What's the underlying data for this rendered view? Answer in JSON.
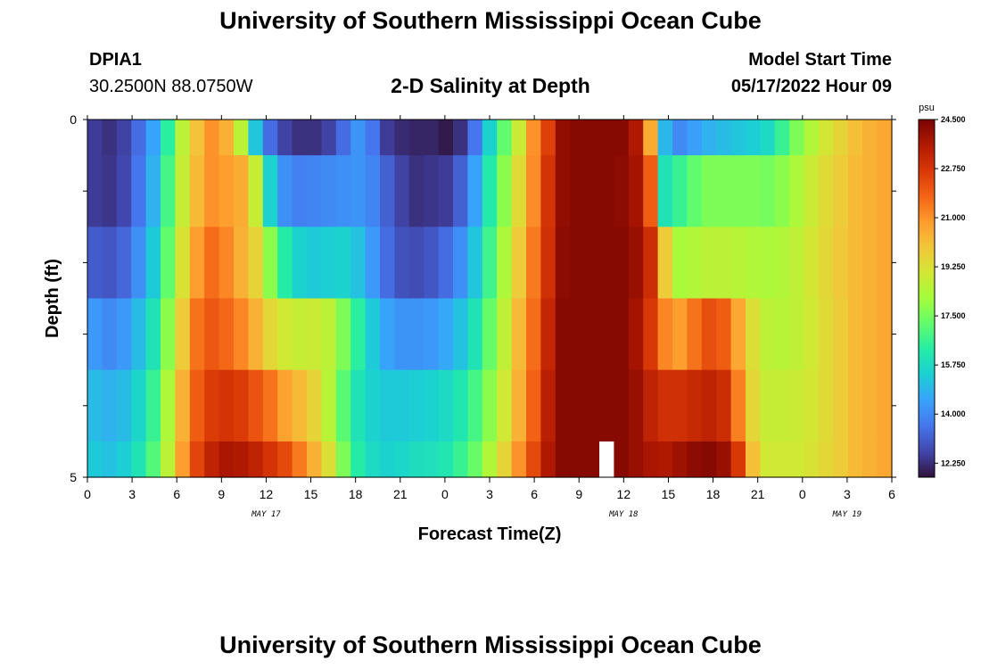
{
  "header": {
    "title": "University of Southern Mississippi Ocean Cube",
    "station_id": "DPIA1",
    "coords": "30.2500N  88.0750W",
    "subtitle": "2-D Salinity at Depth",
    "start_label": "Model Start Time",
    "start_value": "05/17/2022 Hour 09"
  },
  "footer": {
    "title": "University of Southern Mississippi Ocean Cube"
  },
  "colors": {
    "background": "#ffffff",
    "missing": "#ffffff",
    "text": "#000000"
  },
  "chart_data": {
    "type": "heatmap",
    "title": "2-D Salinity at Depth",
    "xlabel": "Forecast Time(Z)",
    "ylabel": "Depth (ft)",
    "x_start_hours": 0,
    "x_step_hours": 1,
    "x_end_hours": 54,
    "xtick_labels": [
      "0",
      "3",
      "6",
      "9",
      "12",
      "15",
      "18",
      "21",
      "0",
      "3",
      "6",
      "9",
      "12",
      "15",
      "18",
      "21",
      "0",
      "3",
      "6"
    ],
    "xtick_hours": [
      0,
      3,
      6,
      9,
      12,
      15,
      18,
      21,
      24,
      27,
      30,
      33,
      36,
      39,
      42,
      45,
      48,
      51,
      54
    ],
    "date_labels": [
      {
        "label": "MAY 17",
        "hour": 12
      },
      {
        "label": "MAY 18",
        "hour": 36
      },
      {
        "label": "MAY 19",
        "hour": 51
      }
    ],
    "ytick_labels": [
      {
        "label": "0",
        "depth": 0
      },
      {
        "label": "5",
        "depth": 5
      }
    ],
    "ylim": [
      0,
      5
    ],
    "depth_levels": [
      0.0,
      0.5,
      1.5,
      2.5,
      3.5,
      4.5
    ],
    "depth_bounds": [
      0,
      0.5,
      1.5,
      2.5,
      3.5,
      4.5,
      5
    ],
    "colorbar": {
      "unit": "psu",
      "min": 11.75,
      "max": 24.5,
      "tick_labels": [
        "24.500",
        "22.750",
        "21.000",
        "19.250",
        "17.500",
        "15.750",
        "14.000",
        "12.250"
      ],
      "tick_values": [
        24.5,
        22.75,
        21.0,
        19.25,
        17.5,
        15.75,
        14.0,
        12.25
      ],
      "colormap": [
        "#30123b",
        "#4145ab",
        "#4675ed",
        "#39a2fc",
        "#1bcfd4",
        "#24eca6",
        "#61fc6c",
        "#a4fc3b",
        "#d1e834",
        "#f3c63a",
        "#fe9b2d",
        "#f36315",
        "#d93806",
        "#b11901",
        "#7a0402"
      ]
    },
    "missing_cells": [
      {
        "hour": 35,
        "depth_index": 5
      }
    ],
    "salinity": [
      [
        12.5,
        12.3,
        12.6,
        13.4,
        14.5,
        16.4,
        18.6,
        20.0,
        21.0,
        20.4,
        18.6,
        15.2,
        13.4,
        12.6,
        12.3,
        12.3,
        12.6,
        13.4,
        14.2,
        13.6,
        12.5,
        12.2,
        12.1,
        12.1,
        11.9,
        12.3,
        13.6,
        15.5,
        17.2,
        18.9,
        21.0,
        22.5,
        24.1,
        24.3,
        24.3,
        24.3,
        24.3,
        23.6,
        20.5,
        14.9,
        14.0,
        14.4,
        14.8,
        15.0,
        15.2,
        15.4,
        15.7,
        16.6,
        17.6,
        18.4,
        19.1,
        19.6,
        20.1,
        20.4,
        20.6
      ],
      [
        12.5,
        12.4,
        12.7,
        13.6,
        14.8,
        16.8,
        18.8,
        20.2,
        21.0,
        20.8,
        20.5,
        18.8,
        15.5,
        14.1,
        13.8,
        13.9,
        14.0,
        14.1,
        14.2,
        13.9,
        13.2,
        12.6,
        12.3,
        12.4,
        12.5,
        13.2,
        14.5,
        16.2,
        17.8,
        19.4,
        21.1,
        22.8,
        24.1,
        24.3,
        24.3,
        24.3,
        24.2,
        23.8,
        21.9,
        16.0,
        16.6,
        17.2,
        17.6,
        17.6,
        17.6,
        17.6,
        17.5,
        17.8,
        18.3,
        18.9,
        19.4,
        19.8,
        20.2,
        20.4,
        20.6
      ],
      [
        13.1,
        13.0,
        13.3,
        14.1,
        15.3,
        17.2,
        19.2,
        20.8,
        21.6,
        21.2,
        20.4,
        19.6,
        17.8,
        16.3,
        15.5,
        15.3,
        15.4,
        15.5,
        15.1,
        14.3,
        13.4,
        12.9,
        12.8,
        13.0,
        13.4,
        14.1,
        15.2,
        16.7,
        18.3,
        19.8,
        21.4,
        22.9,
        24.2,
        24.3,
        24.3,
        24.3,
        24.3,
        24.0,
        23.0,
        19.8,
        18.2,
        18.4,
        18.6,
        18.6,
        18.5,
        18.4,
        18.3,
        18.4,
        18.7,
        19.1,
        19.5,
        19.9,
        20.2,
        20.4,
        20.6
      ],
      [
        14.3,
        14.0,
        14.3,
        15.0,
        16.0,
        17.8,
        19.8,
        21.5,
        22.0,
        21.7,
        21.2,
        20.4,
        19.5,
        19.0,
        18.8,
        18.9,
        18.6,
        17.6,
        16.4,
        15.3,
        14.5,
        14.2,
        14.2,
        14.3,
        14.6,
        15.1,
        16.0,
        17.3,
        18.7,
        20.2,
        21.6,
        23.2,
        24.3,
        24.3,
        24.3,
        24.3,
        24.3,
        23.8,
        22.7,
        21.2,
        20.8,
        21.5,
        22.2,
        21.9,
        20.6,
        19.3,
        18.6,
        18.5,
        18.7,
        19.0,
        19.4,
        19.8,
        20.2,
        20.4,
        20.6
      ],
      [
        15.0,
        14.8,
        15.0,
        15.6,
        16.6,
        18.3,
        20.4,
        21.9,
        22.6,
        22.8,
        22.6,
        22.1,
        21.5,
        20.7,
        20.2,
        19.6,
        18.5,
        17.1,
        16.0,
        15.5,
        15.3,
        15.3,
        15.4,
        15.5,
        15.7,
        16.1,
        16.8,
        17.8,
        19.0,
        20.4,
        21.8,
        23.4,
        24.3,
        24.3,
        24.3,
        24.3,
        24.3,
        24.0,
        23.3,
        22.9,
        22.9,
        23.1,
        23.3,
        23.0,
        21.3,
        19.5,
        18.8,
        18.8,
        18.9,
        19.1,
        19.4,
        19.8,
        20.2,
        20.4,
        20.6
      ],
      [
        15.3,
        15.1,
        15.4,
        16.0,
        17.0,
        18.6,
        20.8,
        22.4,
        23.3,
        23.7,
        23.6,
        23.3,
        22.8,
        22.3,
        21.4,
        20.4,
        19.3,
        17.6,
        16.3,
        15.7,
        15.5,
        15.6,
        15.8,
        15.9,
        16.1,
        16.6,
        17.3,
        18.4,
        19.6,
        21.0,
        22.3,
        23.6,
        24.3,
        24.3,
        24.3,
        null,
        24.3,
        24.0,
        23.7,
        23.6,
        23.9,
        24.2,
        24.3,
        24.0,
        22.7,
        20.1,
        19.0,
        19.0,
        19.0,
        19.2,
        19.5,
        19.8,
        20.2,
        20.4,
        20.6
      ]
    ]
  }
}
